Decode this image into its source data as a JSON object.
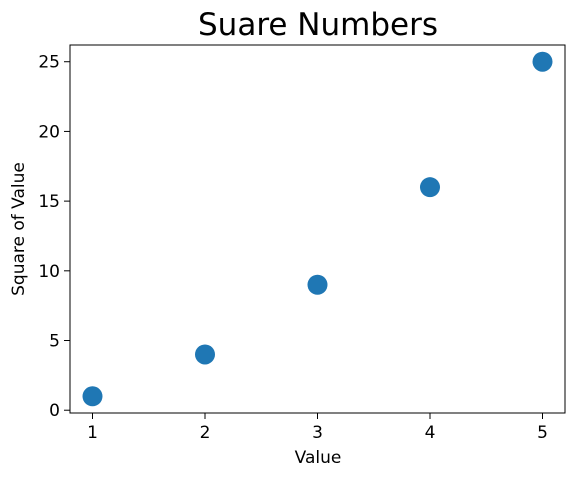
{
  "chart_data": {
    "type": "scatter",
    "title": "Suare Numbers",
    "xlabel": "Value",
    "ylabel": "Square of Value",
    "x": [
      1,
      2,
      3,
      4,
      5
    ],
    "y": [
      1,
      4,
      9,
      16,
      25
    ],
    "xlim": [
      0.8,
      5.2
    ],
    "ylim": [
      -0.2,
      26.2
    ],
    "xticks": [
      1,
      2,
      3,
      4,
      5
    ],
    "yticks": [
      0,
      5,
      10,
      15,
      20,
      25
    ],
    "grid": false,
    "marker_color": "#1f77b4"
  }
}
